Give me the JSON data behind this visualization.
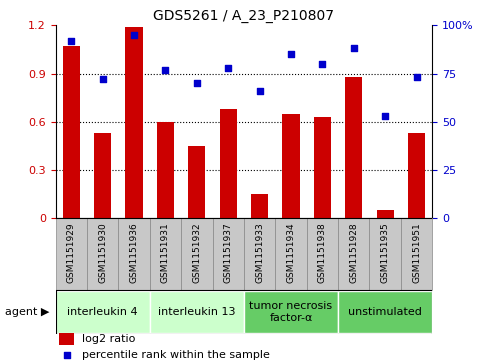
{
  "title": "GDS5261 / A_23_P210807",
  "samples": [
    "GSM1151929",
    "GSM1151930",
    "GSM1151936",
    "GSM1151931",
    "GSM1151932",
    "GSM1151937",
    "GSM1151933",
    "GSM1151934",
    "GSM1151938",
    "GSM1151928",
    "GSM1151935",
    "GSM1151951"
  ],
  "log2_ratio": [
    1.07,
    0.53,
    1.19,
    0.6,
    0.45,
    0.68,
    0.15,
    0.65,
    0.63,
    0.88,
    0.05,
    0.53
  ],
  "percentile_rank": [
    92,
    72,
    95,
    77,
    70,
    78,
    66,
    85,
    80,
    88,
    53,
    73
  ],
  "bar_color": "#cc0000",
  "dot_color": "#0000cc",
  "ylim_left": [
    0,
    1.2
  ],
  "ylim_right": [
    0,
    100
  ],
  "yticks_left": [
    0,
    0.3,
    0.6,
    0.9,
    1.2
  ],
  "yticks_right": [
    0,
    25,
    50,
    75,
    100
  ],
  "ytick_labels_left": [
    "0",
    "0.3",
    "0.6",
    "0.9",
    "1.2"
  ],
  "ytick_labels_right": [
    "0",
    "25",
    "50",
    "75",
    "100%"
  ],
  "agents": [
    {
      "label": "interleukin 4",
      "start": 0,
      "end": 3,
      "color": "#ccffcc"
    },
    {
      "label": "interleukin 13",
      "start": 3,
      "end": 6,
      "color": "#ccffcc"
    },
    {
      "label": "tumor necrosis\nfactor-α",
      "start": 6,
      "end": 9,
      "color": "#66cc66"
    },
    {
      "label": "unstimulated",
      "start": 9,
      "end": 12,
      "color": "#66cc66"
    }
  ],
  "agent_label": "agent ▶",
  "legend_log2": "log2 ratio",
  "legend_pct": "percentile rank within the sample",
  "tick_label_color_left": "#cc0000",
  "tick_label_color_right": "#0000cc",
  "bar_width": 0.55,
  "sample_box_color": "#c8c8c8",
  "sample_box_edge": "#888888",
  "title_fontsize": 10,
  "axis_fontsize": 8,
  "sample_fontsize": 6.5,
  "agent_fontsize": 8,
  "legend_fontsize": 8
}
